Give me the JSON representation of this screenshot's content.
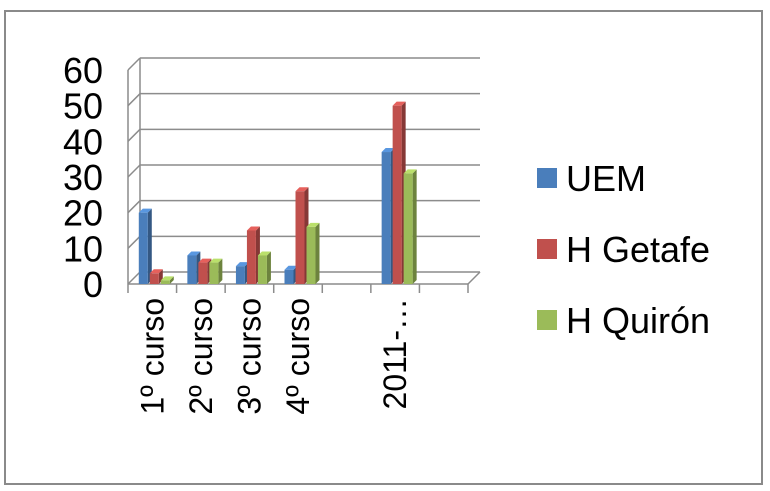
{
  "chart_data": {
    "type": "bar",
    "style": "3d-clustered-column",
    "categories": [
      "1º curso",
      "2º curso",
      "3º curso",
      "4º curso",
      "",
      "2011-…",
      ""
    ],
    "series": [
      {
        "name": "UEM",
        "color": "#4a7ebb",
        "values": [
          20,
          8,
          5,
          4,
          null,
          37,
          null
        ]
      },
      {
        "name": "H Getafe",
        "color": "#c0504d",
        "values": [
          3,
          6,
          15,
          26,
          null,
          50,
          null
        ]
      },
      {
        "name": "H Quirón",
        "color": "#9bbb59",
        "values": [
          1,
          6,
          8,
          16,
          null,
          31,
          null
        ]
      }
    ],
    "ylim": [
      0,
      60
    ],
    "yticks": [
      0,
      10,
      20,
      30,
      40,
      50,
      60
    ],
    "grid": true,
    "legend": "right",
    "title": "",
    "xlabel": "",
    "ylabel": ""
  }
}
